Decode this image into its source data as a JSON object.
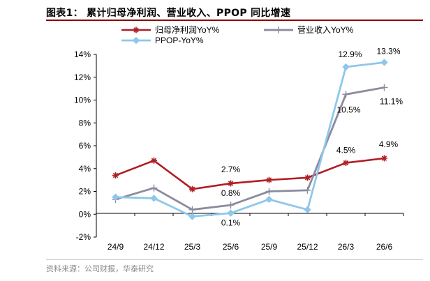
{
  "figure_title": "图表1：  累计归母净利润、营业收入、PPOP 同比增速",
  "source_note": "资料来源：公司财报，华泰研究",
  "chart_data": {
    "type": "line",
    "categories": [
      "24/9",
      "24/12",
      "25/3",
      "25/6",
      "25/9",
      "25/12",
      "26/3",
      "26/6"
    ],
    "ylim": [
      -2,
      14
    ],
    "yticks": [
      -2,
      0,
      2,
      4,
      6,
      8,
      10,
      12,
      14
    ],
    "ytick_labels": [
      "-2%",
      "0%",
      "2%",
      "4%",
      "6%",
      "8%",
      "10%",
      "12%",
      "14%"
    ],
    "grid": false,
    "legend_position": "top",
    "series": [
      {
        "name": "归母净利润YoY%",
        "color": "#b01e23",
        "marker": "star",
        "values": [
          3.4,
          4.7,
          2.2,
          2.7,
          3.0,
          3.2,
          4.5,
          4.9
        ],
        "labels": [
          "",
          "",
          "",
          "2.7%",
          "",
          "",
          "4.5%",
          "4.9%"
        ]
      },
      {
        "name": "营业收入YoY%",
        "color": "#8a8b9e",
        "marker": "plus",
        "values": [
          1.3,
          2.3,
          0.4,
          0.8,
          2.0,
          2.1,
          10.5,
          11.1
        ],
        "labels": [
          "",
          "",
          "",
          "0.8%",
          "",
          "",
          "10.5%",
          "11.1%"
        ]
      },
      {
        "name": "PPOP-YoY%",
        "color": "#8fc7ec",
        "marker": "diamond",
        "values": [
          1.5,
          1.4,
          -0.2,
          0.1,
          1.3,
          0.4,
          12.9,
          13.3
        ],
        "labels": [
          "",
          "",
          "",
          "0.1%",
          "",
          "",
          "12.9%",
          "13.3%"
        ]
      }
    ]
  }
}
